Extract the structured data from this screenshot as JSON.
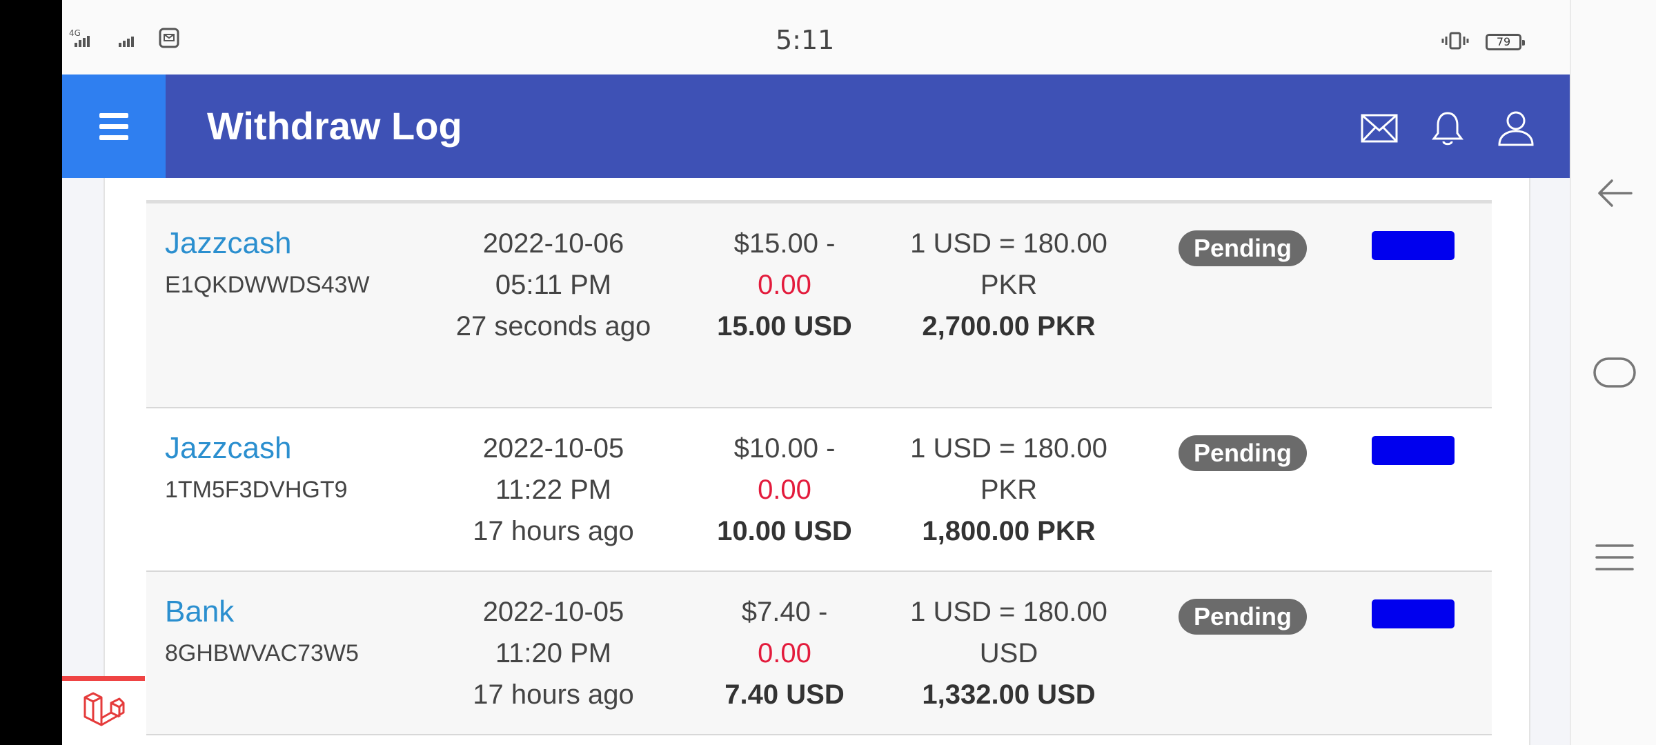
{
  "status_bar": {
    "network": "4G",
    "time": "5:11",
    "battery": "79"
  },
  "app_bar": {
    "title": "Withdraw Log",
    "icons": [
      "menu-icon",
      "mail-icon",
      "bell-icon",
      "user-icon"
    ]
  },
  "withdrawals": [
    {
      "gateway": "Jazzcash",
      "trx": "E1QKDWWDS43W",
      "date": "2022-10-06",
      "time": "05:11 PM",
      "ago": "27 seconds ago",
      "amount": "$15.00 -",
      "charge": "0.00",
      "total": "15.00 USD",
      "rate": "1 USD = 180.00",
      "rate_currency": "PKR",
      "receivable": "2,700.00 PKR",
      "status": "Pending"
    },
    {
      "gateway": "Jazzcash",
      "trx": "1TM5F3DVHGT9",
      "date": "2022-10-05",
      "time": "11:22 PM",
      "ago": "17 hours ago",
      "amount": "$10.00 -",
      "charge": "0.00",
      "total": "10.00 USD",
      "rate": "1 USD = 180.00",
      "rate_currency": "PKR",
      "receivable": "1,800.00 PKR",
      "status": "Pending"
    },
    {
      "gateway": "Bank",
      "trx": "8GHBWVAC73W5",
      "date": "2022-10-05",
      "time": "11:20 PM",
      "ago": "17 hours ago",
      "amount": "$7.40 -",
      "charge": "0.00",
      "total": "7.40 USD",
      "rate": "1 USD = 180.00",
      "rate_currency": "USD",
      "receivable": "1,332.00 USD",
      "status": "Pending"
    }
  ],
  "colors": {
    "app_bar": "#3e51b5",
    "menu_button": "#2f7ff0",
    "gateway_link": "#2b8fcf",
    "charge_red": "#e31b3c",
    "badge_gray": "#6b6b6b",
    "action_blue": "#0000ee"
  }
}
